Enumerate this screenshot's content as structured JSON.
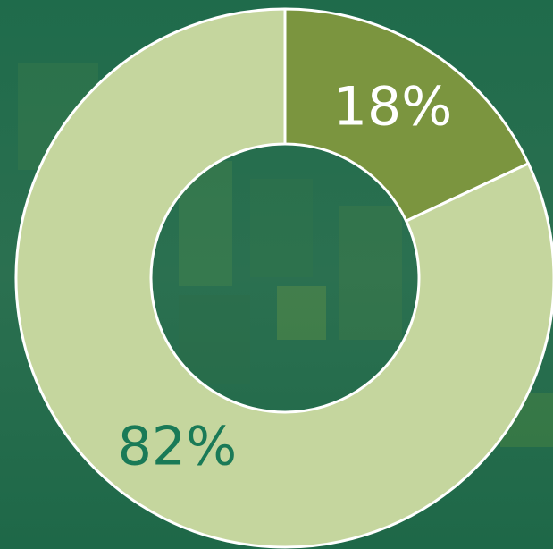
{
  "chart_data": {
    "type": "pie",
    "donut": true,
    "values": [
      18,
      82
    ],
    "value_labels": [
      "18%",
      "82%"
    ],
    "colors": [
      "#7b953f",
      "#c5d69e"
    ],
    "label_colors": [
      "#ffffff",
      "#1a7a57"
    ]
  }
}
